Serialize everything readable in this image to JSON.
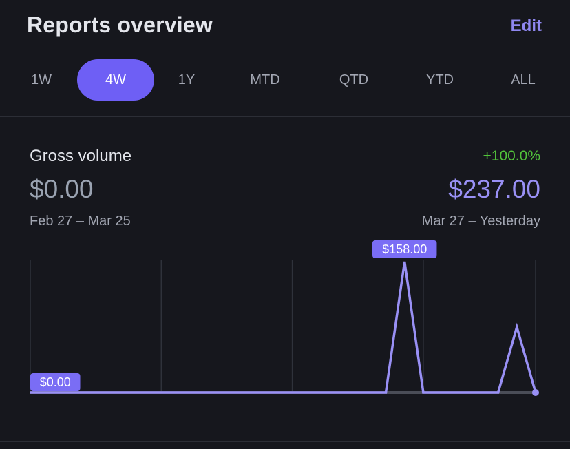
{
  "header": {
    "title": "Reports overview",
    "edit_label": "Edit"
  },
  "tabs": [
    {
      "label": "1W",
      "active": false
    },
    {
      "label": "4W",
      "active": true
    },
    {
      "label": "1Y",
      "active": false
    },
    {
      "label": "MTD",
      "active": false
    },
    {
      "label": "QTD",
      "active": false
    },
    {
      "label": "YTD",
      "active": false
    },
    {
      "label": "ALL",
      "active": false
    }
  ],
  "metric": {
    "label": "Gross volume",
    "change": "+100.0%",
    "previous_value": "$0.00",
    "current_value": "$237.00",
    "previous_range": "Feb 27 – Mar 25",
    "current_range": "Mar 27 – Yesterday"
  },
  "colors": {
    "background": "#16171d",
    "accent": "#6e5ff5",
    "line": "#9990f5",
    "positive": "#52c23b",
    "previous_series": "#4a4d57"
  },
  "chart_data": {
    "type": "line",
    "x": [
      1,
      2,
      3,
      4,
      5,
      6,
      7,
      8,
      9,
      10,
      11,
      12,
      13,
      14,
      15,
      16,
      17,
      18,
      19,
      20,
      21,
      22,
      23,
      24,
      25,
      26,
      27,
      28
    ],
    "series": [
      {
        "values": [
          0,
          0,
          0,
          0,
          0,
          0,
          0,
          0,
          0,
          0,
          0,
          0,
          0,
          0,
          0,
          0,
          0,
          0,
          0,
          0,
          158,
          0,
          0,
          0,
          0,
          0,
          79,
          0
        ]
      },
      {
        "values": [
          0,
          0,
          0,
          0,
          0,
          0,
          0,
          0,
          0,
          0,
          0,
          0,
          0,
          0,
          0,
          0,
          0,
          0,
          0,
          0,
          0,
          0,
          0,
          0,
          0,
          0,
          0,
          0
        ]
      }
    ],
    "ylim": [
      0,
      158
    ],
    "annotations": [
      {
        "label": "$0.00",
        "x": 1,
        "y": 0
      },
      {
        "label": "$158.00",
        "x": 21,
        "y": 158
      }
    ],
    "grid": true
  }
}
